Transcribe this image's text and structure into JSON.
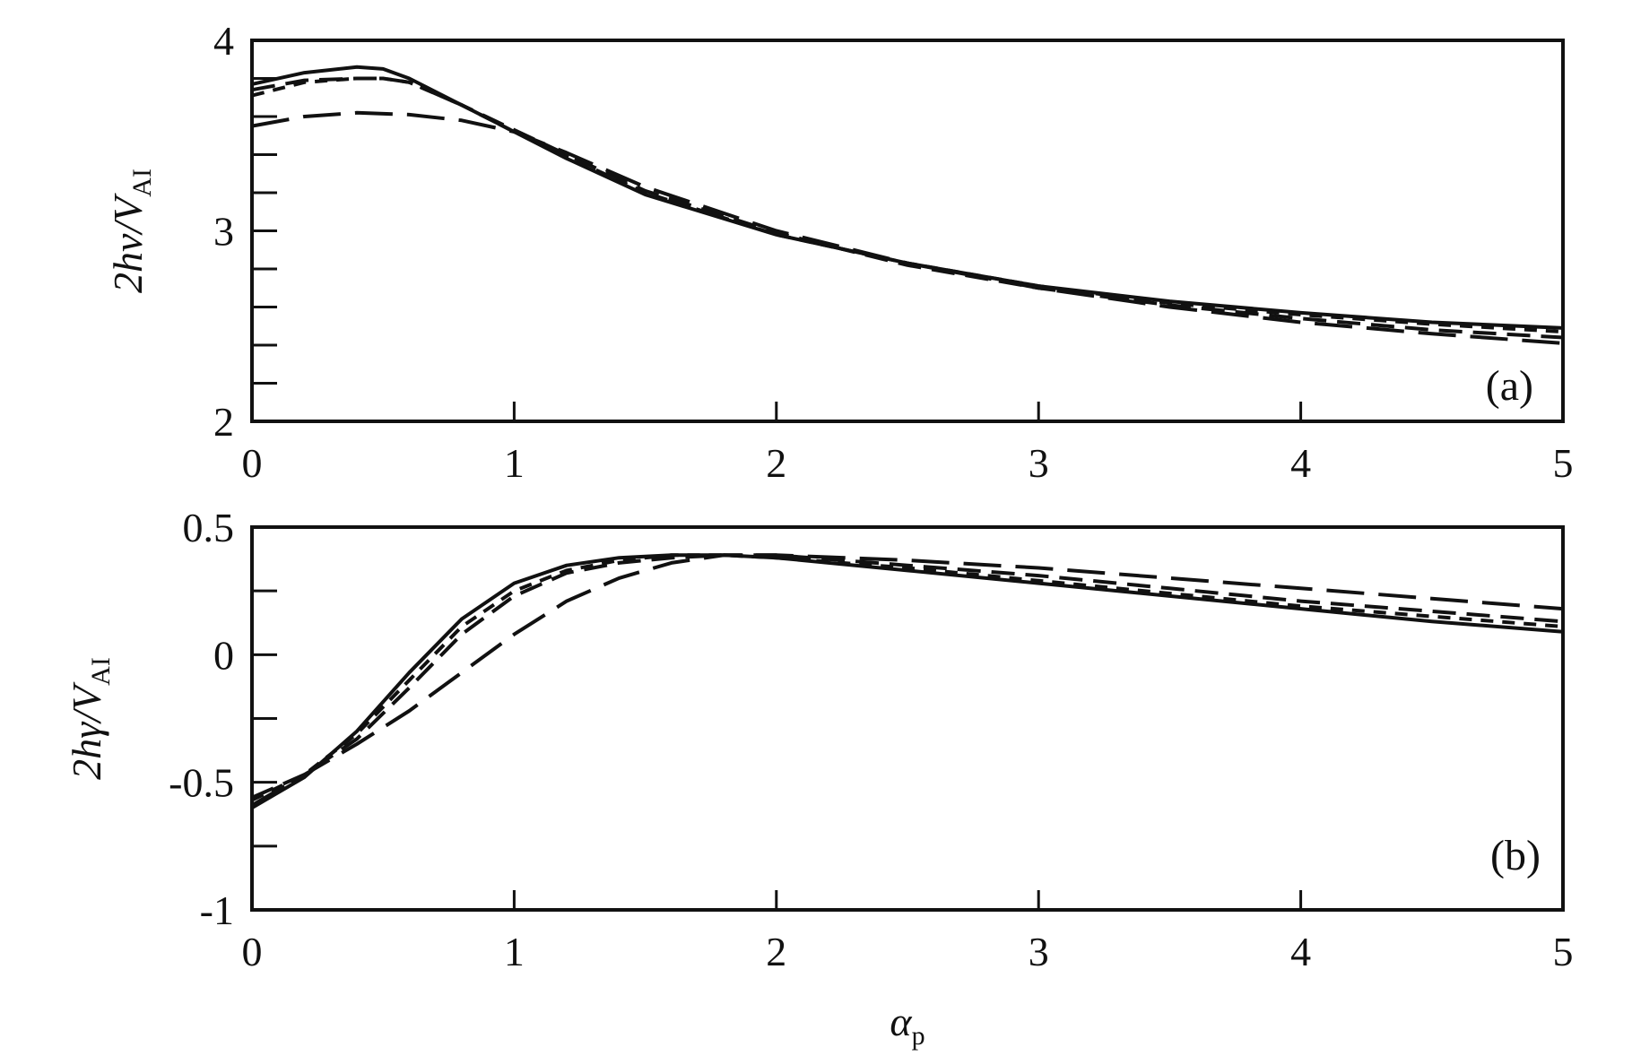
{
  "chart_data": [
    {
      "type": "line",
      "panel_label": "(a)",
      "ylabel": {
        "main": "2hν/V",
        "sub": "AI"
      },
      "xlabel": "",
      "xlim": [
        0,
        5
      ],
      "ylim": [
        2,
        4
      ],
      "x_ticks": [
        0,
        1,
        2,
        3,
        4,
        5
      ],
      "x_tick_labels": [
        "0",
        "1",
        "2",
        "3",
        "4",
        "5"
      ],
      "y_ticks": [
        2,
        3,
        4
      ],
      "y_tick_labels": [
        "2",
        "3",
        "4"
      ],
      "y_minor_step": 0.2,
      "grid": false,
      "series": [
        {
          "style": "solid",
          "x": [
            0,
            0.2,
            0.4,
            0.5,
            0.6,
            0.8,
            1.0,
            1.2,
            1.5,
            2.0,
            2.5,
            3.0,
            3.5,
            4.0,
            4.5,
            5.0
          ],
          "y": [
            3.77,
            3.83,
            3.86,
            3.85,
            3.8,
            3.66,
            3.52,
            3.38,
            3.19,
            2.98,
            2.83,
            2.71,
            2.63,
            2.57,
            2.52,
            2.49
          ]
        },
        {
          "style": "short-dash",
          "x": [
            0,
            0.2,
            0.4,
            0.5,
            0.6,
            0.8,
            1.0,
            1.2,
            1.5,
            2.0,
            2.5,
            3.0,
            3.5,
            4.0,
            4.5,
            5.0
          ],
          "y": [
            3.71,
            3.78,
            3.8,
            3.8,
            3.78,
            3.66,
            3.52,
            3.39,
            3.2,
            2.98,
            2.83,
            2.71,
            2.62,
            2.56,
            2.51,
            2.47
          ]
        },
        {
          "style": "medium-dash",
          "x": [
            0,
            0.2,
            0.4,
            0.5,
            0.6,
            0.8,
            1.0,
            1.2,
            1.5,
            2.0,
            2.5,
            3.0,
            3.5,
            4.0,
            4.5,
            5.0
          ],
          "y": [
            3.74,
            3.79,
            3.8,
            3.8,
            3.78,
            3.66,
            3.53,
            3.4,
            3.21,
            2.99,
            2.82,
            2.7,
            2.61,
            2.54,
            2.48,
            2.44
          ]
        },
        {
          "style": "long-dash",
          "x": [
            0,
            0.2,
            0.4,
            0.6,
            0.8,
            1.0,
            1.2,
            1.5,
            2.0,
            2.5,
            3.0,
            3.5,
            4.0,
            4.5,
            5.0
          ],
          "y": [
            3.55,
            3.6,
            3.62,
            3.61,
            3.58,
            3.52,
            3.41,
            3.23,
            3.0,
            2.83,
            2.7,
            2.6,
            2.52,
            2.46,
            2.41
          ]
        }
      ]
    },
    {
      "type": "line",
      "panel_label": "(b)",
      "ylabel": {
        "main": "2hγ/V",
        "sub": "AI"
      },
      "xlabel": "α",
      "xlabel_sub": "p",
      "xlim": [
        0,
        5
      ],
      "ylim": [
        -1,
        0.5
      ],
      "x_ticks": [
        0,
        1,
        2,
        3,
        4,
        5
      ],
      "x_tick_labels": [
        "0",
        "1",
        "2",
        "3",
        "4",
        "5"
      ],
      "y_ticks": [
        -1,
        -0.5,
        0,
        0.5
      ],
      "y_tick_labels": [
        "-1",
        "-0.5",
        "0",
        "0.5"
      ],
      "y_minor_step": 0.25,
      "grid": false,
      "series": [
        {
          "style": "solid",
          "x": [
            0,
            0.2,
            0.4,
            0.6,
            0.8,
            1.0,
            1.2,
            1.4,
            1.6,
            1.8,
            2.0,
            2.5,
            3.0,
            3.5,
            4.0,
            4.5,
            5.0
          ],
          "y": [
            -0.6,
            -0.48,
            -0.3,
            -0.07,
            0.14,
            0.28,
            0.35,
            0.38,
            0.39,
            0.39,
            0.38,
            0.33,
            0.28,
            0.23,
            0.18,
            0.13,
            0.09
          ]
        },
        {
          "style": "short-dash",
          "x": [
            0,
            0.2,
            0.4,
            0.6,
            0.8,
            1.0,
            1.2,
            1.4,
            1.6,
            1.8,
            2.0,
            2.5,
            3.0,
            3.5,
            4.0,
            4.5,
            5.0
          ],
          "y": [
            -0.57,
            -0.47,
            -0.31,
            -0.1,
            0.11,
            0.25,
            0.33,
            0.37,
            0.39,
            0.39,
            0.38,
            0.34,
            0.29,
            0.24,
            0.19,
            0.15,
            0.11
          ]
        },
        {
          "style": "medium-dash",
          "x": [
            0,
            0.2,
            0.4,
            0.6,
            0.8,
            1.0,
            1.2,
            1.4,
            1.6,
            1.8,
            2.0,
            2.5,
            3.0,
            3.5,
            4.0,
            4.5,
            5.0
          ],
          "y": [
            -0.56,
            -0.47,
            -0.33,
            -0.13,
            0.08,
            0.23,
            0.32,
            0.36,
            0.38,
            0.39,
            0.39,
            0.35,
            0.31,
            0.26,
            0.21,
            0.17,
            0.13
          ]
        },
        {
          "style": "long-dash",
          "x": [
            0,
            0.2,
            0.4,
            0.6,
            0.8,
            1.0,
            1.2,
            1.4,
            1.6,
            1.8,
            2.0,
            2.5,
            3.0,
            3.5,
            4.0,
            4.5,
            5.0
          ],
          "y": [
            -0.59,
            -0.47,
            -0.35,
            -0.22,
            -0.07,
            0.08,
            0.21,
            0.3,
            0.36,
            0.39,
            0.39,
            0.37,
            0.34,
            0.3,
            0.26,
            0.22,
            0.18
          ]
        }
      ]
    }
  ]
}
